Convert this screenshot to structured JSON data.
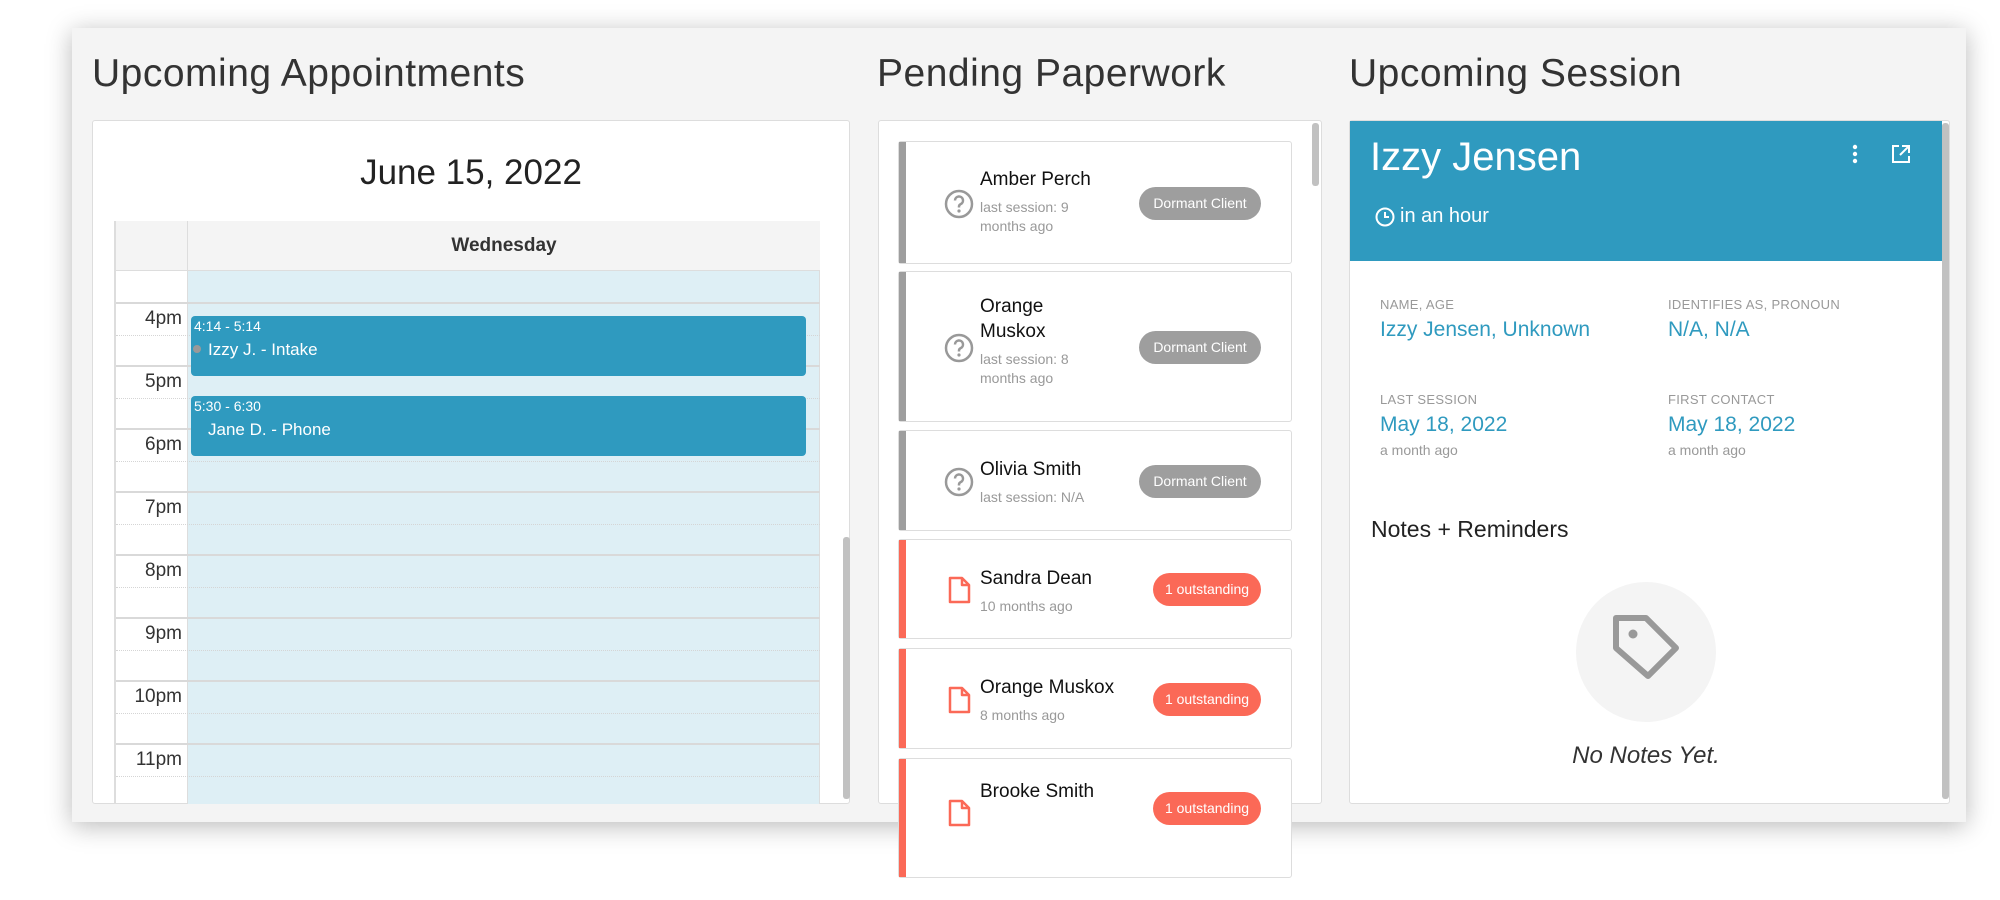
{
  "appointments": {
    "title": "Upcoming Appointments",
    "date": "June 15, 2022",
    "day": "Wednesday",
    "hours": [
      "4pm",
      "5pm",
      "6pm",
      "7pm",
      "8pm",
      "9pm",
      "10pm",
      "11pm"
    ],
    "events": [
      {
        "time": "4:14 - 5:14",
        "label": "Izzy J. - Intake"
      },
      {
        "time": "5:30 - 6:30",
        "label": "Jane D. - Phone"
      }
    ]
  },
  "paperwork": {
    "title": "Pending Paperwork",
    "items": [
      {
        "name": "Amber Perch",
        "sub": "last session: 9 months ago",
        "badge": "Dormant Client",
        "icon": "question-circle-icon"
      },
      {
        "name": "Orange Muskox",
        "sub": "last session: 8 months ago",
        "badge": "Dormant Client",
        "icon": "question-circle-icon"
      },
      {
        "name": "Olivia Smith",
        "sub": "last session: N/A",
        "badge": "Dormant Client",
        "icon": "question-circle-icon"
      },
      {
        "name": "Sandra Dean",
        "sub": "10 months ago",
        "badge": "1 outstanding",
        "icon": "document-icon"
      },
      {
        "name": "Orange Muskox",
        "sub": "8 months ago",
        "badge": "1 outstanding",
        "icon": "document-icon"
      },
      {
        "name": "Brooke Smith",
        "sub": "",
        "badge": "1 outstanding",
        "icon": "document-icon"
      }
    ]
  },
  "session": {
    "title": "Upcoming Session",
    "client": "Izzy Jensen",
    "when": "in an hour",
    "fields": [
      {
        "label": "NAME, AGE",
        "value": "Izzy Jensen, Unknown",
        "sub": ""
      },
      {
        "label": "IDENTIFIES AS, PRONOUN",
        "value": "N/A, N/A",
        "sub": ""
      },
      {
        "label": "LAST SESSION",
        "value": "May 18, 2022",
        "sub": "a month ago"
      },
      {
        "label": "FIRST CONTACT",
        "value": "May 18, 2022",
        "sub": "a month ago"
      }
    ],
    "notes_title": "Notes + Reminders",
    "notes_empty": "No Notes Yet."
  },
  "colors": {
    "accent": "#2f9abf",
    "dormant": "#9e9e9e",
    "outstanding": "#fb6957",
    "calendar_bg": "#deeff5"
  }
}
